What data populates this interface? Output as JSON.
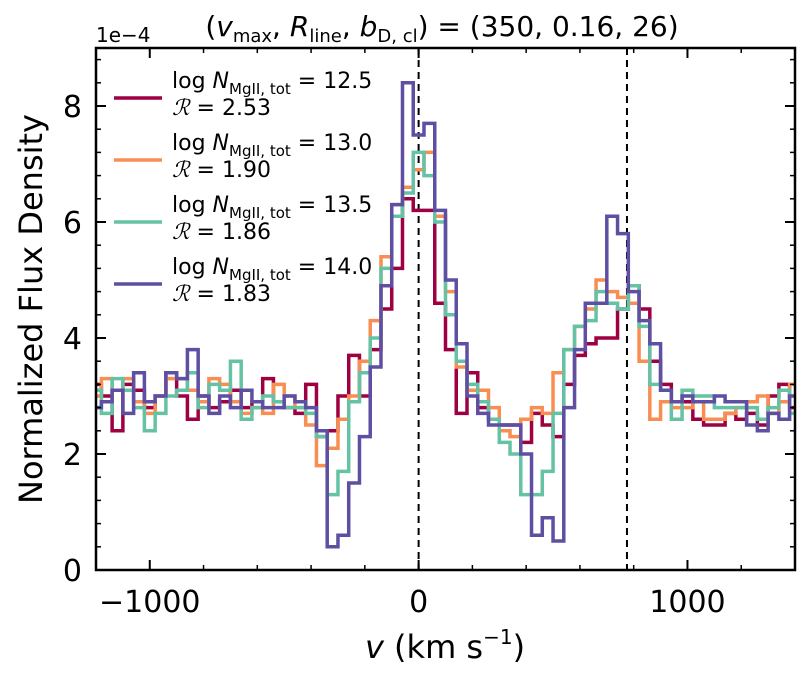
{
  "chart_data": {
    "type": "line",
    "style": "step",
    "title": "(v_max, R_line, b_D,cl) = (350, 0.16, 26)",
    "title_parts": {
      "open": "(",
      "v": "v",
      "v_sub": "max",
      "R": "R",
      "R_sub": "line",
      "b": "b",
      "b_sub": "D, cl",
      "close_eq": ") = (350, 0.16, 26)",
      "sep": ", "
    },
    "xlabel": "v (km s⁻¹)",
    "xlabel_parts": {
      "var": "v",
      "unit": " (km s",
      "exp": "−1",
      "close": ")"
    },
    "ylabel": "Normalized Flux Density",
    "y_offset_label": "1e−4",
    "xlim": [
      -1200,
      1400
    ],
    "ylim": [
      0,
      9
    ],
    "xticks": [
      -1000,
      0,
      1000
    ],
    "xtick_labels": [
      "−1000",
      "0",
      "1000"
    ],
    "yticks": [
      0,
      2,
      4,
      6,
      8
    ],
    "ytick_labels": [
      "0",
      "2",
      "4",
      "6",
      "8"
    ],
    "vlines": [
      0,
      775
    ],
    "legend_position": "top-left",
    "x": [
      -1200,
      -1160,
      -1120,
      -1080,
      -1040,
      -1000,
      -960,
      -920,
      -880,
      -840,
      -800,
      -760,
      -720,
      -680,
      -640,
      -600,
      -560,
      -520,
      -480,
      -440,
      -400,
      -360,
      -320,
      -280,
      -240,
      -200,
      -160,
      -120,
      -80,
      -40,
      0,
      40,
      80,
      120,
      160,
      200,
      240,
      280,
      320,
      360,
      400,
      440,
      480,
      520,
      560,
      600,
      640,
      680,
      720,
      760,
      800,
      840,
      880,
      920,
      960,
      1000,
      1040,
      1080,
      1120,
      1160,
      1200,
      1240,
      1280,
      1320,
      1360,
      1400
    ],
    "series": [
      {
        "name": "log N_MgII,tot = 12.5",
        "legend_num": "12.5",
        "ratio_num": "2.53",
        "color": "#9e0142",
        "values": [
          3.2,
          3.0,
          2.4,
          3.2,
          3.1,
          2.8,
          3.0,
          3.4,
          3.0,
          2.6,
          3.0,
          2.8,
          2.9,
          3.1,
          2.8,
          2.9,
          3.3,
          2.9,
          2.8,
          2.7,
          3.2,
          2.3,
          2.4,
          3.0,
          3.7,
          3.0,
          3.8,
          4.5,
          5.2,
          6.4,
          6.2,
          6.2,
          4.6,
          3.8,
          2.7,
          3.4,
          2.8,
          2.6,
          2.5,
          2.5,
          2.2,
          2.7,
          2.5,
          2.3,
          3.2,
          3.7,
          3.9,
          4.0,
          4.0,
          4.5,
          4.9,
          4.5,
          3.6,
          3.2,
          2.9,
          2.9,
          2.6,
          2.5,
          2.5,
          2.7,
          2.6,
          2.7,
          2.5,
          3.0,
          3.2,
          2.8
        ]
      },
      {
        "name": "log N_MgII,tot = 13.0",
        "legend_num": "13.0",
        "ratio_num": "1.90",
        "color": "#f98e52",
        "values": [
          3.0,
          3.3,
          3.1,
          3.3,
          2.9,
          2.7,
          3.0,
          3.3,
          3.3,
          3.1,
          2.9,
          3.3,
          3.2,
          2.9,
          2.7,
          2.8,
          2.7,
          3.2,
          3.0,
          2.8,
          2.5,
          1.8,
          2.1,
          2.6,
          3.0,
          3.6,
          4.3,
          5.4,
          6.3,
          6.6,
          6.9,
          7.2,
          6.1,
          4.8,
          3.5,
          3.1,
          3.1,
          2.8,
          2.4,
          2.3,
          2.6,
          2.8,
          2.7,
          3.4,
          3.8,
          4.2,
          4.5,
          5.0,
          4.8,
          4.7,
          4.6,
          3.6,
          2.6,
          2.9,
          2.8,
          2.8,
          2.9,
          2.6,
          2.6,
          2.7,
          2.8,
          2.9,
          3.0,
          2.7,
          2.9,
          3.2
        ]
      },
      {
        "name": "log N_MgII,tot = 13.5",
        "legend_num": "13.5",
        "ratio_num": "1.86",
        "color": "#66c2a5",
        "values": [
          3.1,
          2.7,
          3.3,
          3.1,
          2.8,
          2.4,
          2.7,
          3.0,
          3.1,
          3.4,
          2.8,
          3.2,
          3.1,
          3.6,
          2.6,
          2.8,
          3.0,
          2.9,
          2.8,
          2.8,
          2.7,
          2.3,
          1.3,
          1.7,
          2.9,
          3.4,
          4.0,
          5.2,
          6.1,
          6.5,
          7.2,
          6.8,
          6.0,
          4.4,
          3.6,
          3.2,
          2.9,
          2.6,
          2.2,
          2.0,
          1.3,
          1.3,
          1.7,
          2.7,
          3.8,
          4.2,
          4.3,
          4.8,
          4.6,
          4.5,
          4.9,
          4.2,
          3.2,
          3.1,
          2.6,
          3.1,
          3.0,
          3.0,
          2.8,
          2.8,
          2.8,
          2.8,
          2.6,
          2.8,
          3.1,
          2.7
        ]
      },
      {
        "name": "log N_MgII,tot = 14.0",
        "legend_num": "14.0",
        "ratio_num": "1.83",
        "color": "#5e4fa2",
        "values": [
          2.8,
          2.9,
          3.1,
          2.7,
          3.4,
          2.9,
          3.0,
          3.4,
          3.3,
          3.8,
          3.0,
          2.7,
          3.0,
          2.8,
          3.1,
          2.9,
          2.8,
          2.8,
          3.0,
          2.9,
          2.8,
          2.4,
          0.4,
          0.6,
          1.5,
          2.3,
          3.5,
          4.9,
          6.3,
          8.4,
          7.5,
          7.7,
          6.2,
          5.0,
          3.9,
          3.0,
          2.7,
          2.5,
          2.5,
          2.5,
          2.0,
          0.6,
          0.9,
          0.5,
          2.8,
          3.8,
          4.6,
          4.6,
          6.1,
          5.8,
          4.8,
          4.3,
          3.9,
          3.1,
          2.9,
          3.0,
          2.9,
          2.9,
          3.0,
          2.9,
          2.9,
          2.5,
          2.4,
          2.7,
          2.6,
          3.0
        ]
      }
    ]
  }
}
